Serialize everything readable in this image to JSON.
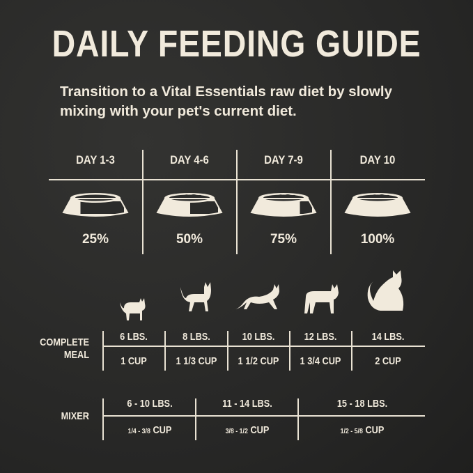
{
  "title": "DAILY FEEDING GUIDE",
  "subtitle": "Transition to a Vital Essentials raw diet by slowly mixing with your pet's current diet.",
  "colors": {
    "background": "#2b2b2a",
    "text": "#f1eadc"
  },
  "transition": [
    {
      "day": "DAY 1-3",
      "percent": "25%",
      "fill": 0.25
    },
    {
      "day": "DAY 4-6",
      "percent": "50%",
      "fill": 0.5
    },
    {
      "day": "DAY 7-9",
      "percent": "75%",
      "fill": 0.75
    },
    {
      "day": "DAY 10",
      "percent": "100%",
      "fill": 1.0
    }
  ],
  "complete_meal": {
    "label_line1": "COMPLETE",
    "label_line2": "MEAL",
    "columns": [
      {
        "weight": "6 LBS.",
        "amount": "1 CUP",
        "icon": "kitten-icon"
      },
      {
        "weight": "8 LBS.",
        "amount": "1 1/3 CUP",
        "icon": "kitten-walking-icon"
      },
      {
        "weight": "10 LBS.",
        "amount": "1 1/2 CUP",
        "icon": "cat-stretching-icon"
      },
      {
        "weight": "12 LBS.",
        "amount": "1 3/4 CUP",
        "icon": "cat-standing-icon"
      },
      {
        "weight": "14 LBS.",
        "amount": "2 CUP",
        "icon": "cat-sitting-icon"
      }
    ]
  },
  "mixer": {
    "label": "MIXER",
    "columns": [
      {
        "weight": "6 - 10 LBS.",
        "fraction": "1/4 - 3/8",
        "unit": "CUP"
      },
      {
        "weight": "11 -  14 LBS.",
        "fraction": "3/8 - 1/2",
        "unit": "CUP"
      },
      {
        "weight": "15 - 18 LBS.",
        "fraction": "1/2  - 5/8",
        "unit": "CUP"
      }
    ]
  }
}
